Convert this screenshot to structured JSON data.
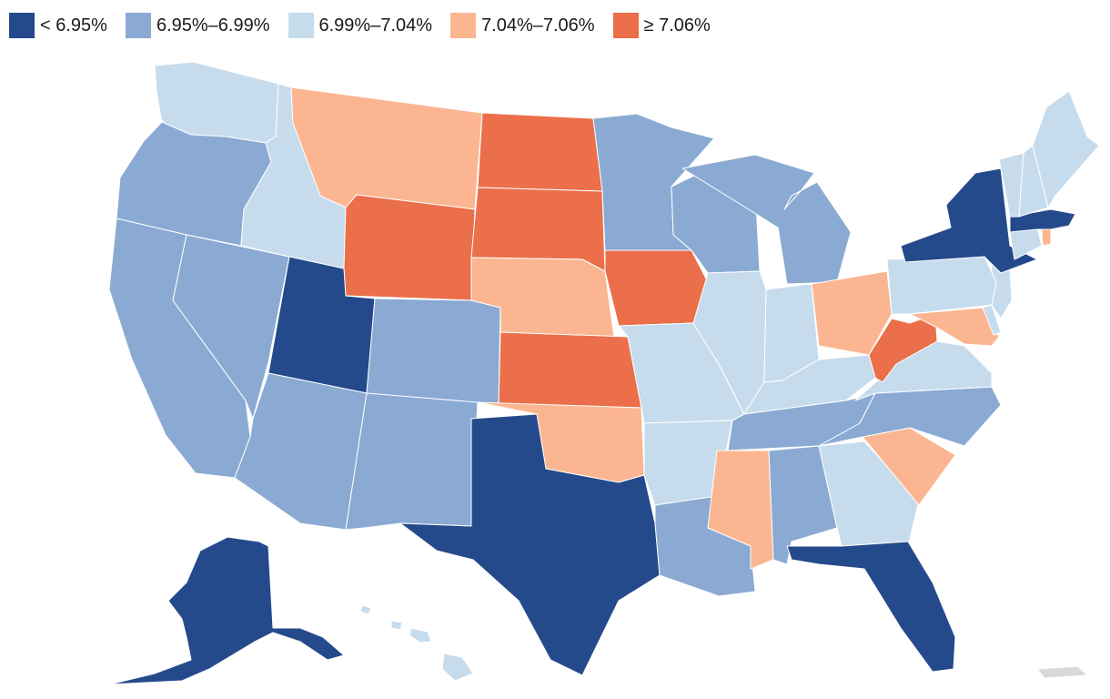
{
  "legend": {
    "bins": [
      {
        "label": "< 6.95%",
        "color": "#244a8c"
      },
      {
        "label": "6.95%–6.99%",
        "color": "#8aaad3"
      },
      {
        "label": "6.99%–7.04%",
        "color": "#c6dced"
      },
      {
        "label": "7.04%–7.06%",
        "color": "#fbb691"
      },
      {
        "label": "≥ 7.06%",
        "color": "#ea6f4a"
      }
    ]
  },
  "states": [
    {
      "id": "WA",
      "bin": 2
    },
    {
      "id": "OR",
      "bin": 1
    },
    {
      "id": "CA",
      "bin": 1
    },
    {
      "id": "NV",
      "bin": 1
    },
    {
      "id": "ID",
      "bin": 2
    },
    {
      "id": "MT",
      "bin": 3
    },
    {
      "id": "WY",
      "bin": 4
    },
    {
      "id": "UT",
      "bin": 0
    },
    {
      "id": "AZ",
      "bin": 1
    },
    {
      "id": "CO",
      "bin": 1
    },
    {
      "id": "NM",
      "bin": 1
    },
    {
      "id": "ND",
      "bin": 4
    },
    {
      "id": "SD",
      "bin": 4
    },
    {
      "id": "NE",
      "bin": 3
    },
    {
      "id": "KS",
      "bin": 4
    },
    {
      "id": "OK",
      "bin": 3
    },
    {
      "id": "TX",
      "bin": 0
    },
    {
      "id": "MN",
      "bin": 1
    },
    {
      "id": "IA",
      "bin": 4
    },
    {
      "id": "MO",
      "bin": 2
    },
    {
      "id": "AR",
      "bin": 2
    },
    {
      "id": "LA",
      "bin": 1
    },
    {
      "id": "WI",
      "bin": 1
    },
    {
      "id": "IL",
      "bin": 2
    },
    {
      "id": "MI",
      "bin": 1
    },
    {
      "id": "IN",
      "bin": 2
    },
    {
      "id": "OH",
      "bin": 3
    },
    {
      "id": "KY",
      "bin": 2
    },
    {
      "id": "TN",
      "bin": 1
    },
    {
      "id": "MS",
      "bin": 3
    },
    {
      "id": "AL",
      "bin": 1
    },
    {
      "id": "GA",
      "bin": 2
    },
    {
      "id": "FL",
      "bin": 0
    },
    {
      "id": "SC",
      "bin": 3
    },
    {
      "id": "NC",
      "bin": 1
    },
    {
      "id": "VA",
      "bin": 2
    },
    {
      "id": "WV",
      "bin": 4
    },
    {
      "id": "MD",
      "bin": 3
    },
    {
      "id": "DE",
      "bin": 2
    },
    {
      "id": "NJ",
      "bin": 2
    },
    {
      "id": "PA",
      "bin": 2
    },
    {
      "id": "NY",
      "bin": 0
    },
    {
      "id": "CT",
      "bin": 2
    },
    {
      "id": "RI",
      "bin": 3
    },
    {
      "id": "MA",
      "bin": 0
    },
    {
      "id": "VT",
      "bin": 2
    },
    {
      "id": "NH",
      "bin": 2
    },
    {
      "id": "ME",
      "bin": 2
    },
    {
      "id": "AK",
      "bin": 0
    },
    {
      "id": "HI",
      "bin": 2
    },
    {
      "id": "PR",
      "bin": -1
    }
  ],
  "no_data_color": "#d9d9d9"
}
